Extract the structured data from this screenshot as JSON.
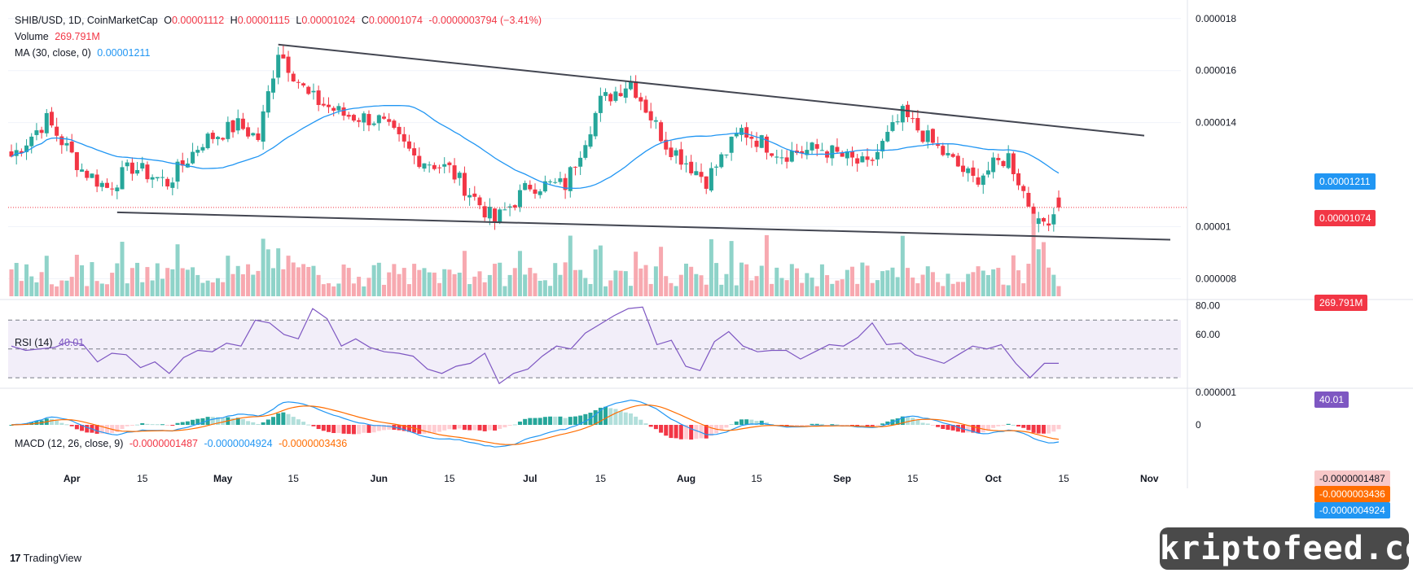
{
  "header": {
    "symbol": "SHIB/USD, 1D, CoinMarketCap",
    "o_label": "O",
    "o_value": "0.00001112",
    "h_label": "H",
    "h_value": "0.00001115",
    "l_label": "L",
    "l_value": "0.00001024",
    "c_label": "C",
    "c_value": "0.00001074",
    "change": "-0.0000003794 (−3.41%)"
  },
  "volume_legend": {
    "label": "Volume",
    "value": "269.791M"
  },
  "ma_legend": {
    "label": "MA (30, close, 0)",
    "value": "0.00001211"
  },
  "rsi_legend": {
    "label": "RSI (14)",
    "value": "40.01"
  },
  "macd_legend": {
    "label": "MACD (12, 26, close, 9)",
    "v1": "-0.0000001487",
    "v2": "-0.0000004924",
    "v3": "-0.0000003436"
  },
  "price_boxes": {
    "ma": "0.00001211",
    "close": "0.00001074",
    "volume": "269.791M",
    "rsi": "40.01",
    "macd_hist": "-0.0000001487",
    "macd_signal": "-0.0000003436",
    "macd_line": "-0.0000004924"
  },
  "colors": {
    "up": "#26a69a",
    "down": "#f23645",
    "ma": "#2196f3",
    "rsi": "#7e57c2",
    "macd": "#2196f3",
    "signal": "#ff6d00",
    "trendline": "#434651"
  },
  "footer": {
    "brand": "TradingView",
    "watermark": "kriptofeed.com"
  },
  "chart_data": [
    {
      "type": "candlestick",
      "title": "SHIB/USD, 1D, CoinMarketCap",
      "y_axis_ticks": [
        "0.000018",
        "0.000016",
        "0.000014",
        "0.00001",
        "0.000008"
      ],
      "x_axis_ticks": [
        "Apr",
        "15",
        "May",
        "15",
        "Jun",
        "15",
        "Jul",
        "15",
        "Aug",
        "15",
        "Sep",
        "15",
        "Oct",
        "15",
        "Nov"
      ],
      "ylim": [
        7.2e-06,
        1.84e-05
      ],
      "close_points": [
        {
          "date": "2024-03-20",
          "close": 1.27e-05
        },
        {
          "date": "2024-03-27",
          "close": 1.41e-05
        },
        {
          "date": "2024-04-03",
          "close": 1.22e-05
        },
        {
          "date": "2024-04-08",
          "close": 1.15e-05
        },
        {
          "date": "2024-04-13",
          "close": 1.23e-05
        },
        {
          "date": "2024-04-20",
          "close": 1.17e-05
        },
        {
          "date": "2024-04-27",
          "close": 1.33e-05
        },
        {
          "date": "2024-05-04",
          "close": 1.39e-05
        },
        {
          "date": "2024-05-08",
          "close": 1.34e-05
        },
        {
          "date": "2024-05-12",
          "close": 1.68e-05
        },
        {
          "date": "2024-05-18",
          "close": 1.5e-05
        },
        {
          "date": "2024-05-25",
          "close": 1.43e-05
        },
        {
          "date": "2024-06-01",
          "close": 1.41e-05
        },
        {
          "date": "2024-06-08",
          "close": 1.27e-05
        },
        {
          "date": "2024-06-15",
          "close": 1.22e-05
        },
        {
          "date": "2024-06-24",
          "close": 1.02e-05
        },
        {
          "date": "2024-07-01",
          "close": 1.16e-05
        },
        {
          "date": "2024-07-08",
          "close": 1.16e-05
        },
        {
          "date": "2024-07-15",
          "close": 1.48e-05
        },
        {
          "date": "2024-07-21",
          "close": 1.56e-05
        },
        {
          "date": "2024-07-28",
          "close": 1.32e-05
        },
        {
          "date": "2024-08-05",
          "close": 1.18e-05
        },
        {
          "date": "2024-08-12",
          "close": 1.37e-05
        },
        {
          "date": "2024-08-20",
          "close": 1.28e-05
        },
        {
          "date": "2024-08-28",
          "close": 1.3e-05
        },
        {
          "date": "2024-09-06",
          "close": 1.23e-05
        },
        {
          "date": "2024-09-13",
          "close": 1.43e-05
        },
        {
          "date": "2024-09-20",
          "close": 1.3e-05
        },
        {
          "date": "2024-09-27",
          "close": 1.18e-05
        },
        {
          "date": "2024-10-04",
          "close": 1.27e-05
        },
        {
          "date": "2024-10-10",
          "close": 1e-05
        },
        {
          "date": "2024-10-14",
          "close": 1.074e-05
        }
      ],
      "series": [
        {
          "name": "MA (30, close, 0)",
          "last": 1.211e-05
        },
        {
          "name": "Volume",
          "last": "269.791M"
        }
      ]
    },
    {
      "type": "line",
      "title": "RSI (14)",
      "y_axis_ticks": [
        "80.00",
        "60.00"
      ],
      "ylim": [
        25,
        82
      ],
      "bands": {
        "upper": 70,
        "middle": 50,
        "lower": 30
      },
      "values": [
        52,
        49,
        50,
        51,
        55,
        53,
        41,
        47,
        46,
        37,
        41,
        33,
        44,
        49,
        48,
        54,
        52,
        70,
        68,
        60,
        57,
        78,
        71,
        52,
        57,
        51,
        48,
        47,
        45,
        36,
        33,
        38,
        40,
        47,
        26,
        33,
        36,
        45,
        52,
        50,
        61,
        67,
        73,
        78,
        79,
        53,
        56,
        38,
        35,
        55,
        62,
        52,
        48,
        49,
        49,
        43,
        48,
        53,
        52,
        58,
        68,
        53,
        54,
        46,
        43,
        40,
        46,
        52,
        50,
        53,
        40,
        30,
        40,
        40.01
      ]
    },
    {
      "type": "line",
      "title": "MACD (12, 26, close, 9)",
      "y_axis_ticks": [
        "0.000001",
        "0"
      ],
      "series": [
        {
          "name": "MACD",
          "last": -4.924e-07
        },
        {
          "name": "Signal",
          "last": -3.436e-07
        },
        {
          "name": "Histogram",
          "last": -1.487e-07
        }
      ]
    }
  ]
}
